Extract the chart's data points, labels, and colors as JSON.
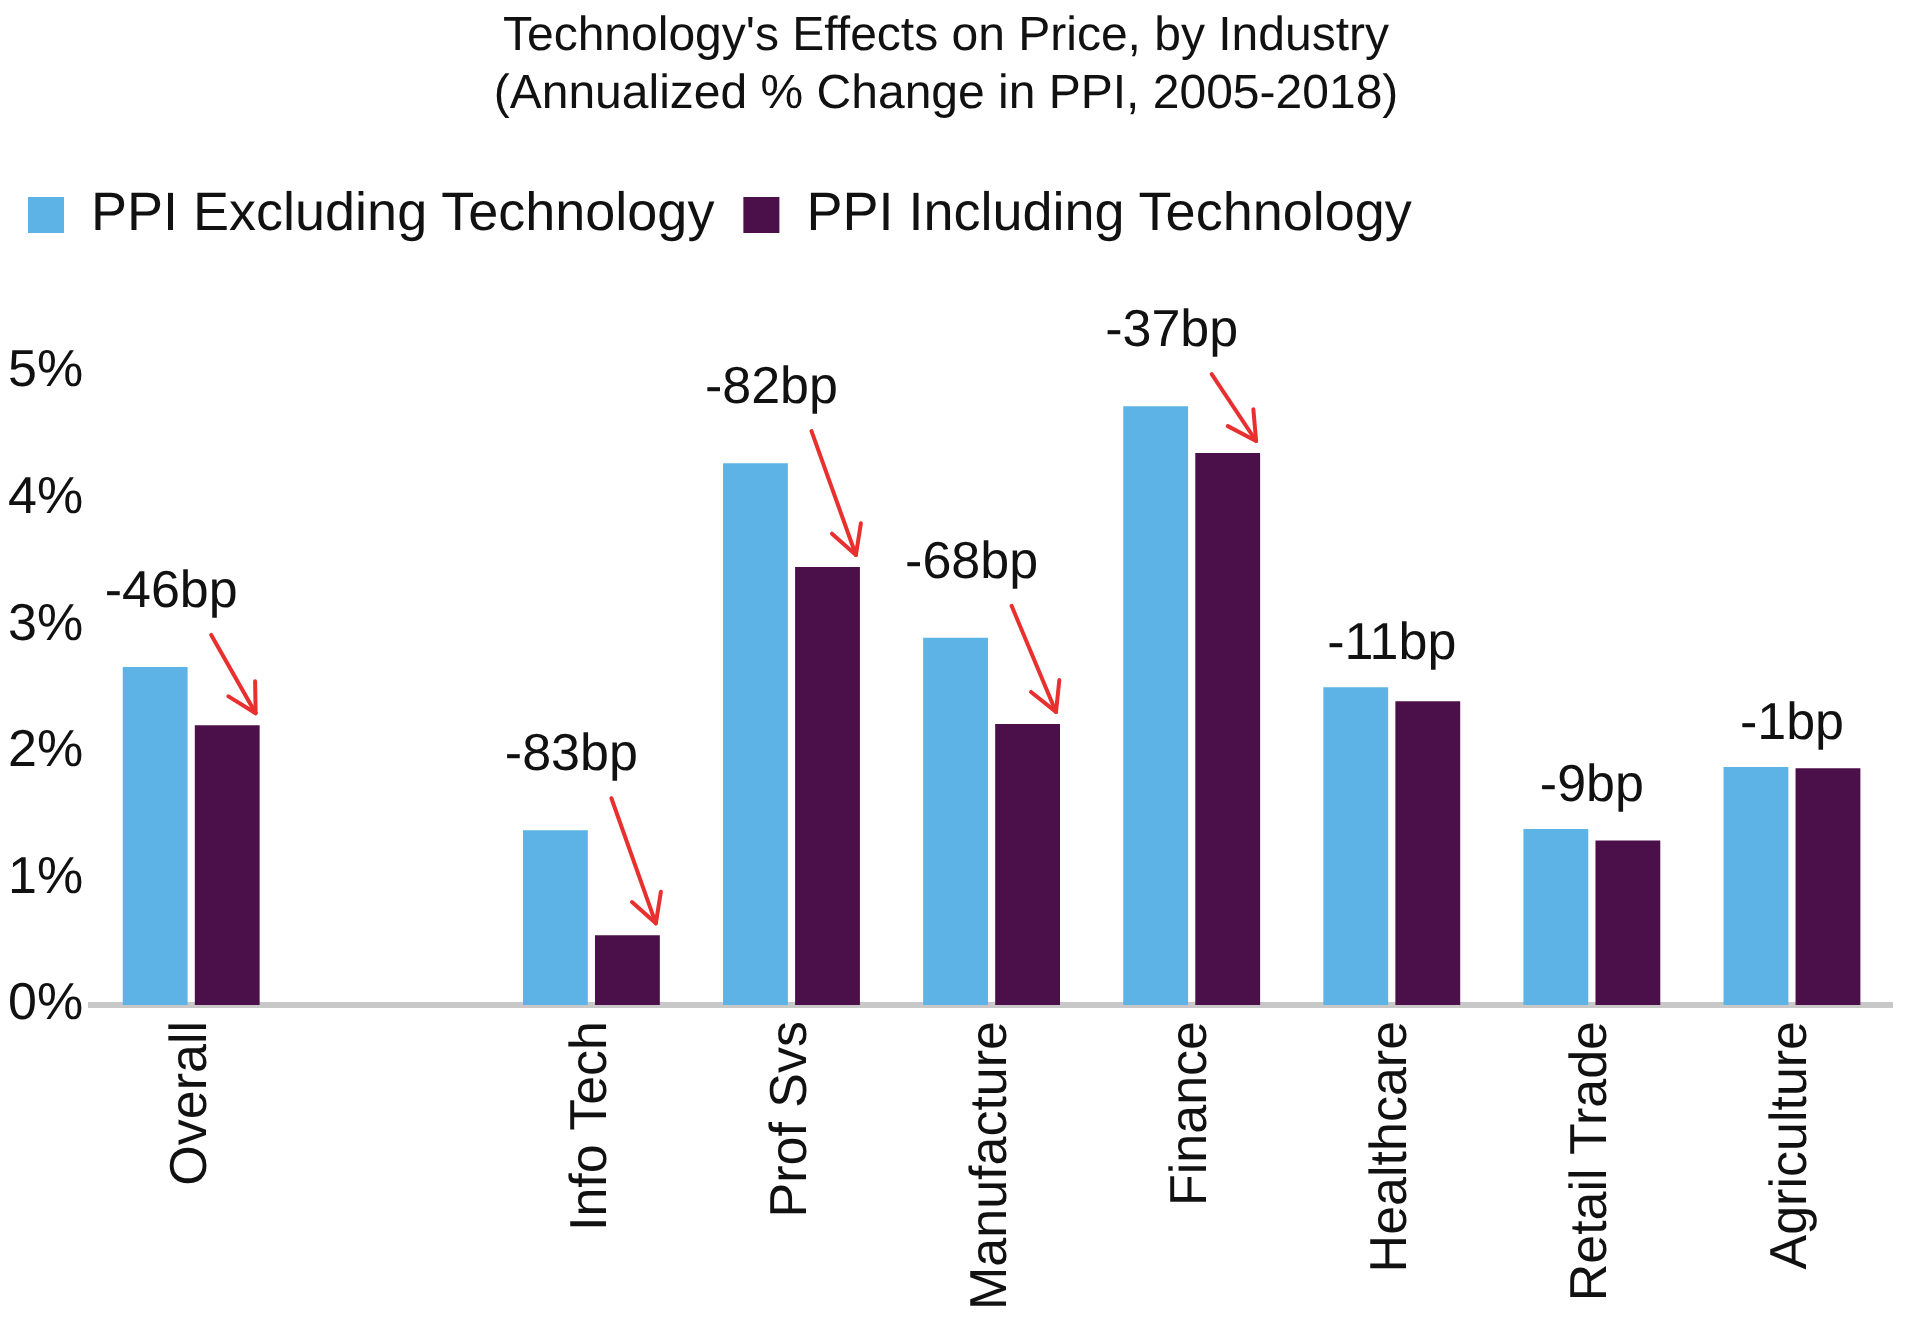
{
  "chart_data": {
    "type": "bar",
    "title": [
      "Technology's Effects on Price, by Industry",
      "(Annualized % Change in PPI, 2005-2018)"
    ],
    "categories": [
      "Overall",
      null,
      "Info Tech",
      "Prof Svs",
      "Manufacture",
      "Finance",
      "Healthcare",
      "Retail Trade",
      "Agriculture"
    ],
    "series": [
      {
        "name": "PPI Excluding Technology",
        "color": "#5db3e6",
        "values": [
          2.67,
          null,
          1.38,
          4.28,
          2.9,
          4.73,
          2.51,
          1.39,
          1.88
        ]
      },
      {
        "name": "PPI Including Technology",
        "color": "#4b0f4a",
        "values": [
          2.21,
          null,
          0.55,
          3.46,
          2.22,
          4.36,
          2.4,
          1.3,
          1.87
        ]
      }
    ],
    "ylim": [
      0,
      5
    ],
    "yticks": [
      {
        "value": 0,
        "label": "0%"
      },
      {
        "value": 1,
        "label": "1%"
      },
      {
        "value": 2,
        "label": "2%"
      },
      {
        "value": 3,
        "label": "3%"
      },
      {
        "value": 4,
        "label": "4%"
      },
      {
        "value": 5,
        "label": "5%"
      }
    ],
    "grid": false,
    "legend": "top",
    "annotations": [
      {
        "text": "-46bp",
        "x": "Overall",
        "y": 2.67
      },
      {
        "text": "-83bp",
        "x": "Info Tech",
        "y": 1.38
      },
      {
        "text": "-82bp",
        "x": "Prof Svs",
        "y": 4.28
      },
      {
        "text": "-68bp",
        "x": "Manufacture",
        "y": 2.9
      },
      {
        "text": "-37bp",
        "x": "Finance",
        "y": 4.73
      },
      {
        "text": "-11bp",
        "x": "Healthcare",
        "y": 2.51
      },
      {
        "text": "-9bp",
        "x": "Retail Trade",
        "y": 1.39
      },
      {
        "text": "-1bp",
        "x": "Agriculture",
        "y": 1.88
      }
    ]
  }
}
